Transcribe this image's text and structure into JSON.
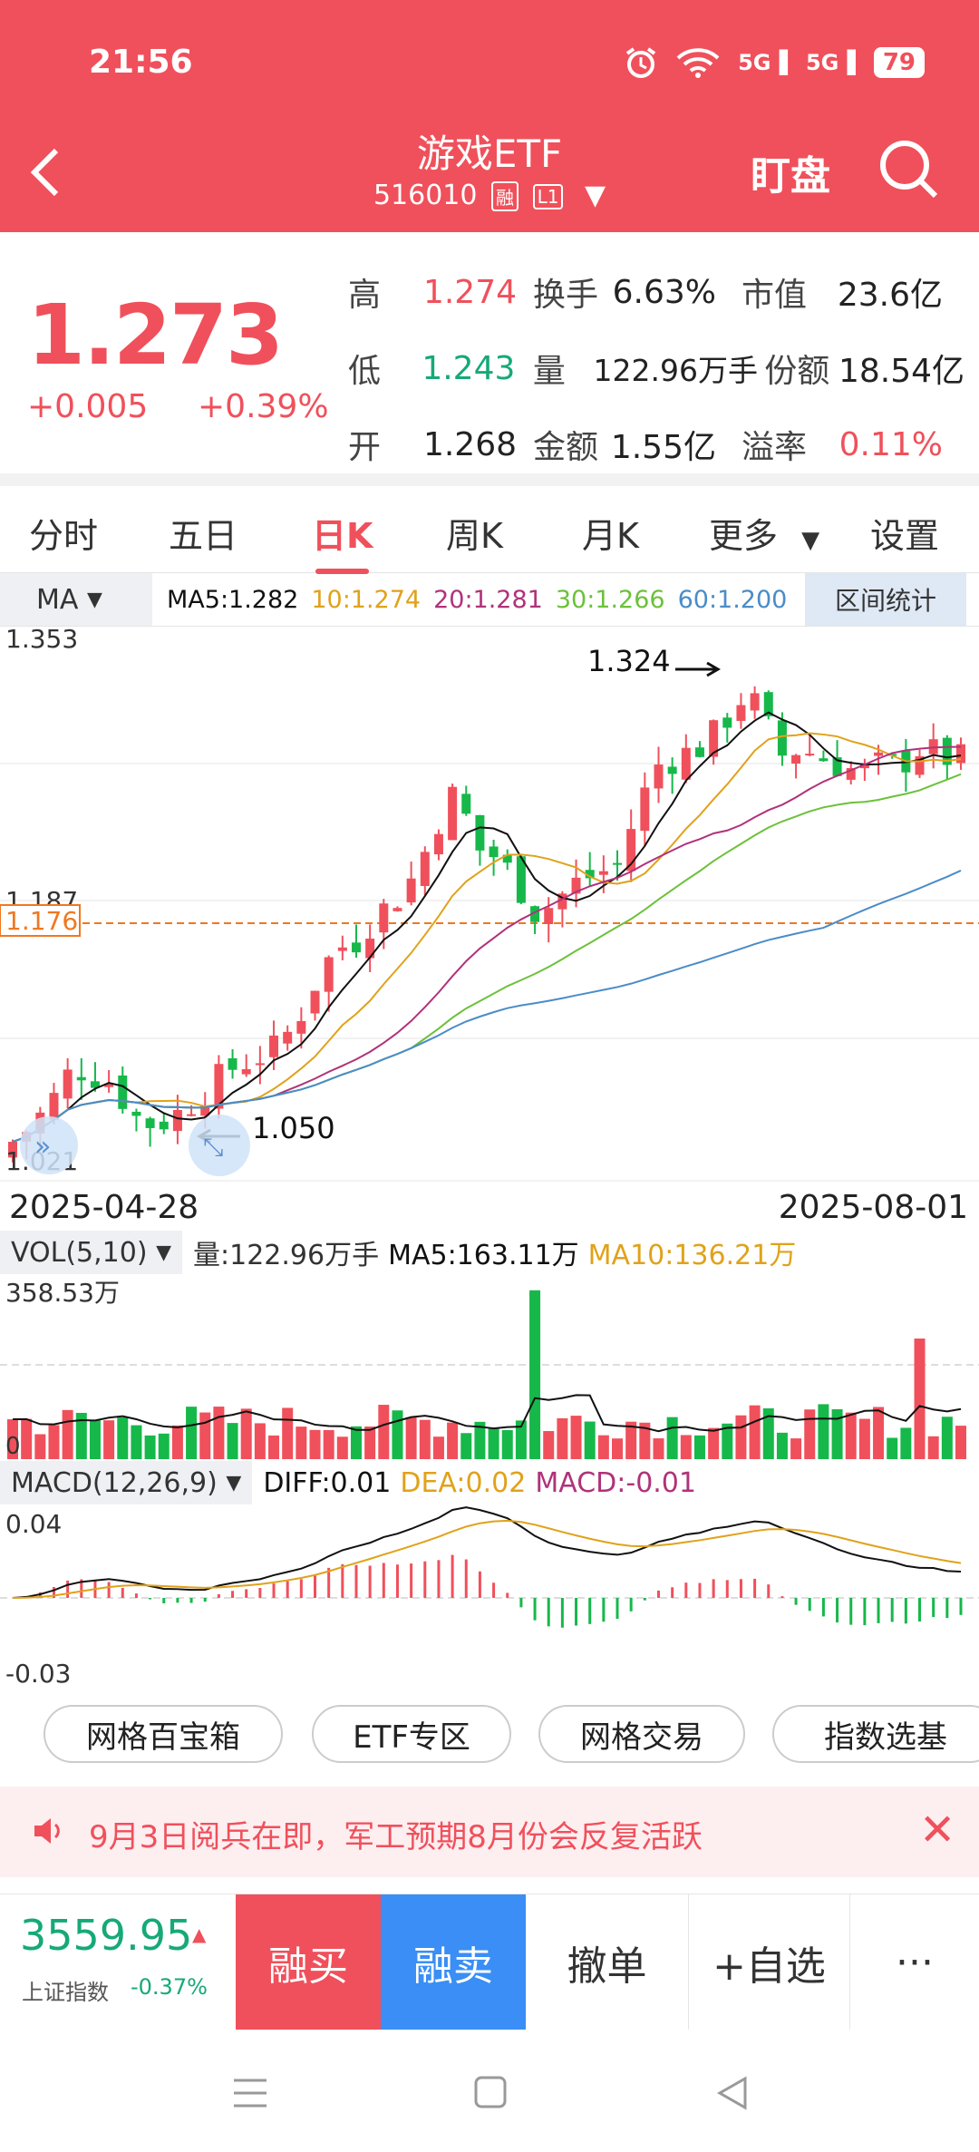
{
  "status": {
    "time": "21:56",
    "battery": "79",
    "net1": "5G",
    "net2": "5G"
  },
  "nav": {
    "title": "游戏ETF",
    "code": "516010",
    "tag1": "融",
    "tag2": "L1",
    "watch": "盯盘"
  },
  "quote": {
    "price": "1.273",
    "change": "+0.005",
    "pct": "+0.39%",
    "high_l": "高",
    "high": "1.274",
    "turn_l": "换手",
    "turn": "6.63%",
    "mcap_l": "市值",
    "mcap": "23.6亿",
    "low_l": "低",
    "low": "1.243",
    "vol_l": "量",
    "vol": "122.96万手",
    "share_l": "份额",
    "share": "18.54亿",
    "open_l": "开",
    "open": "1.268",
    "amt_l": "金额",
    "amt": "1.55亿",
    "prem_l": "溢率",
    "prem": "0.11%"
  },
  "tabs": [
    "分时",
    "五日",
    "日K",
    "周K",
    "月K",
    "更多",
    "设置"
  ],
  "ma": {
    "btn": "MA",
    "ma5": "MA5:1.282",
    "ma10": "10:1.274",
    "ma20": "20:1.281",
    "ma30": "30:1.266",
    "ma60": "60:1.200",
    "range": "区间统计"
  },
  "kline": {
    "top": "1.353",
    "bottom": "1.021",
    "mid": "1.187",
    "ref": "1.176",
    "hi_ann": "1.324",
    "lo_ann": "1.050",
    "colors": {
      "up": "#f0505b",
      "down": "#16b84a",
      "ma5": "#111111",
      "ma10": "#e0a21a",
      "ma20": "#b0327a",
      "ma30": "#6cc13a",
      "ma60": "#4a8cc8"
    }
  },
  "dates": {
    "start": "2025-04-28",
    "end": "2025-08-01"
  },
  "vol": {
    "btn": "VOL(5,10)",
    "amount": "量:122.96万手",
    "ma5": "MA5:163.11万",
    "ma10": "MA10:136.21万",
    "top": "358.53万",
    "zero": "0"
  },
  "macd": {
    "btn": "MACD(12,26,9)",
    "diff": "DIFF:0.01",
    "dea": "DEA:0.02",
    "macd": "MACD:-0.01",
    "top": "0.04",
    "bottom": "-0.03"
  },
  "tools": [
    "网格百宝箱",
    "ETF专区",
    "网格交易",
    "指数选基"
  ],
  "notice": "9月3日阅兵在即，军工预期8月份会反复活跃",
  "bottom": {
    "index_value": "3559.95",
    "index_name": "上证指数",
    "index_pct": "-0.37%",
    "buy": "融买",
    "sell": "融卖",
    "cancel": "撤单",
    "add": "+自选",
    "more": "···"
  }
}
